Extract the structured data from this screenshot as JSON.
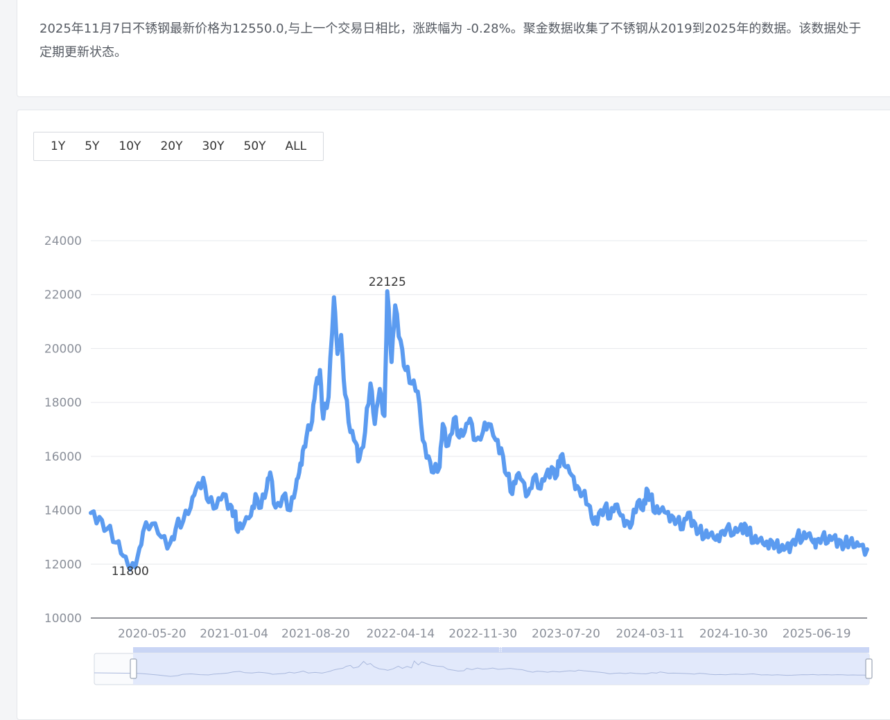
{
  "summary": {
    "text": "2025年11月7日不锈钢最新价格为12550.0,与上一个交易日相比，涨跌幅为 -0.28%。聚金数据收集了不锈钢从2019到2025年的数据。该数据处于定期更新状态。"
  },
  "range_buttons": [
    "1Y",
    "5Y",
    "10Y",
    "20Y",
    "30Y",
    "50Y",
    "ALL"
  ],
  "colors": {
    "line": "#5b9bf0",
    "grid": "#e6e8ec",
    "axis_text": "#8a8f99",
    "slider_fill": "#dfe7fb"
  },
  "chart_data": {
    "type": "line",
    "title": "",
    "xlabel": "",
    "ylabel": "",
    "ylim": [
      10000,
      24000
    ],
    "yticks": [
      "24000",
      "22000",
      "20000",
      "18000",
      "16000",
      "14000",
      "12000",
      "10000"
    ],
    "xticks": [
      "2020-05-20",
      "2021-01-04",
      "2021-08-20",
      "2022-04-14",
      "2022-11-30",
      "2023-07-20",
      "2024-03-11",
      "2024-10-30",
      "2025-06-19"
    ],
    "xlim": [
      "2019-12-01",
      "2025-11-07"
    ],
    "annotations": [
      {
        "label": "11800",
        "date": "2020-03-20",
        "value": 11800
      },
      {
        "label": "22125",
        "date": "2022-03-08",
        "value": 22125
      }
    ],
    "series": [
      {
        "values": [
          [
            "2019-12-01",
            13900
          ],
          [
            "2019-12-25",
            13750
          ],
          [
            "2020-01-15",
            13300
          ],
          [
            "2020-02-10",
            12800
          ],
          [
            "2020-03-01",
            12300
          ],
          [
            "2020-03-20",
            11800
          ],
          [
            "2020-04-10",
            12300
          ],
          [
            "2020-04-25",
            13200
          ],
          [
            "2020-05-20",
            13500
          ],
          [
            "2020-06-15",
            13000
          ],
          [
            "2020-07-10",
            12800
          ],
          [
            "2020-07-25",
            13300
          ],
          [
            "2020-08-15",
            13600
          ],
          [
            "2020-09-05",
            14100
          ],
          [
            "2020-09-20",
            14800
          ],
          [
            "2020-10-10",
            15200
          ],
          [
            "2020-10-25",
            14300
          ],
          [
            "2020-11-15",
            14100
          ],
          [
            "2020-12-05",
            14600
          ],
          [
            "2020-12-25",
            14200
          ],
          [
            "2021-01-04",
            13900
          ],
          [
            "2021-01-15",
            13200
          ],
          [
            "2021-02-01",
            13500
          ],
          [
            "2021-02-20",
            13800
          ],
          [
            "2021-03-05",
            14600
          ],
          [
            "2021-03-20",
            14100
          ],
          [
            "2021-04-05",
            14800
          ],
          [
            "2021-04-15",
            15400
          ],
          [
            "2021-04-30",
            14100
          ],
          [
            "2021-05-20",
            14500
          ],
          [
            "2021-06-10",
            14000
          ],
          [
            "2021-06-25",
            14800
          ],
          [
            "2021-07-05",
            15400
          ],
          [
            "2021-07-15",
            16200
          ],
          [
            "2021-07-25",
            16700
          ],
          [
            "2021-08-10",
            17300
          ],
          [
            "2021-08-20",
            18600
          ],
          [
            "2021-09-01",
            19200
          ],
          [
            "2021-09-10",
            17400
          ],
          [
            "2021-09-25",
            18200
          ],
          [
            "2021-10-10",
            21900
          ],
          [
            "2021-10-20",
            19800
          ],
          [
            "2021-10-30",
            20500
          ],
          [
            "2021-11-10",
            18300
          ],
          [
            "2021-11-25",
            16900
          ],
          [
            "2021-12-10",
            16500
          ],
          [
            "2021-12-20",
            15900
          ],
          [
            "2022-01-05",
            16900
          ],
          [
            "2022-01-20",
            18700
          ],
          [
            "2022-02-01",
            17200
          ],
          [
            "2022-02-15",
            18500
          ],
          [
            "2022-02-28",
            17500
          ],
          [
            "2022-03-08",
            22125
          ],
          [
            "2022-03-20",
            19500
          ],
          [
            "2022-03-30",
            21600
          ],
          [
            "2022-04-14",
            20300
          ],
          [
            "2022-04-28",
            19200
          ],
          [
            "2022-05-15",
            18700
          ],
          [
            "2022-06-01",
            18400
          ],
          [
            "2022-06-15",
            16600
          ],
          [
            "2022-07-01",
            16000
          ],
          [
            "2022-07-15",
            15400
          ],
          [
            "2022-08-01",
            15600
          ],
          [
            "2022-08-10",
            17200
          ],
          [
            "2022-08-25",
            16400
          ],
          [
            "2022-09-10",
            17400
          ],
          [
            "2022-09-25",
            16700
          ],
          [
            "2022-10-10",
            16900
          ],
          [
            "2022-10-25",
            17400
          ],
          [
            "2022-11-10",
            16600
          ],
          [
            "2022-11-30",
            16900
          ],
          [
            "2022-12-15",
            17200
          ],
          [
            "2023-01-05",
            16600
          ],
          [
            "2023-01-20",
            16300
          ],
          [
            "2023-02-05",
            15300
          ],
          [
            "2023-02-20",
            14600
          ],
          [
            "2023-03-05",
            15300
          ],
          [
            "2023-03-20",
            15100
          ],
          [
            "2023-04-05",
            14600
          ],
          [
            "2023-04-20",
            15200
          ],
          [
            "2023-05-10",
            14800
          ],
          [
            "2023-05-25",
            15300
          ],
          [
            "2023-06-10",
            15600
          ],
          [
            "2023-06-25",
            15300
          ],
          [
            "2023-07-05",
            16000
          ],
          [
            "2023-07-20",
            15600
          ],
          [
            "2023-08-05",
            15300
          ],
          [
            "2023-08-20",
            14900
          ],
          [
            "2023-09-05",
            14600
          ],
          [
            "2023-09-20",
            14200
          ],
          [
            "2023-10-05",
            13500
          ],
          [
            "2023-10-20",
            13900
          ],
          [
            "2023-11-05",
            14100
          ],
          [
            "2023-11-20",
            13700
          ],
          [
            "2023-12-05",
            14200
          ],
          [
            "2023-12-20",
            13800
          ],
          [
            "2024-01-05",
            13600
          ],
          [
            "2024-01-20",
            13500
          ],
          [
            "2024-02-05",
            14300
          ],
          [
            "2024-02-20",
            14000
          ],
          [
            "2024-03-01",
            14800
          ],
          [
            "2024-03-11",
            14500
          ],
          [
            "2024-03-25",
            13900
          ],
          [
            "2024-04-10",
            14000
          ],
          [
            "2024-04-25",
            13900
          ],
          [
            "2024-05-10",
            13800
          ],
          [
            "2024-05-25",
            13600
          ],
          [
            "2024-06-10",
            13300
          ],
          [
            "2024-06-25",
            13900
          ],
          [
            "2024-07-10",
            13600
          ],
          [
            "2024-07-25",
            13200
          ],
          [
            "2024-08-10",
            13000
          ],
          [
            "2024-08-25",
            13100
          ],
          [
            "2024-09-10",
            12900
          ],
          [
            "2024-09-25",
            13200
          ],
          [
            "2024-10-10",
            13300
          ],
          [
            "2024-10-30",
            13100
          ],
          [
            "2024-11-15",
            13300
          ],
          [
            "2024-11-30",
            13500
          ],
          [
            "2024-12-10",
            13200
          ],
          [
            "2024-12-25",
            12800
          ],
          [
            "2025-01-10",
            12900
          ],
          [
            "2025-01-25",
            12700
          ],
          [
            "2025-02-10",
            12900
          ],
          [
            "2025-02-25",
            12700
          ],
          [
            "2025-03-10",
            12500
          ],
          [
            "2025-03-25",
            12600
          ],
          [
            "2025-04-10",
            12800
          ],
          [
            "2025-04-25",
            13000
          ],
          [
            "2025-05-10",
            12900
          ],
          [
            "2025-05-25",
            13100
          ],
          [
            "2025-06-10",
            12800
          ],
          [
            "2025-06-19",
            12900
          ],
          [
            "2025-07-05",
            13000
          ],
          [
            "2025-07-20",
            12800
          ],
          [
            "2025-08-05",
            13000
          ],
          [
            "2025-08-20",
            12900
          ],
          [
            "2025-09-05",
            12700
          ],
          [
            "2025-09-20",
            12800
          ],
          [
            "2025-10-05",
            12650
          ],
          [
            "2025-10-20",
            12700
          ],
          [
            "2025-11-07",
            12550
          ]
        ]
      }
    ]
  }
}
